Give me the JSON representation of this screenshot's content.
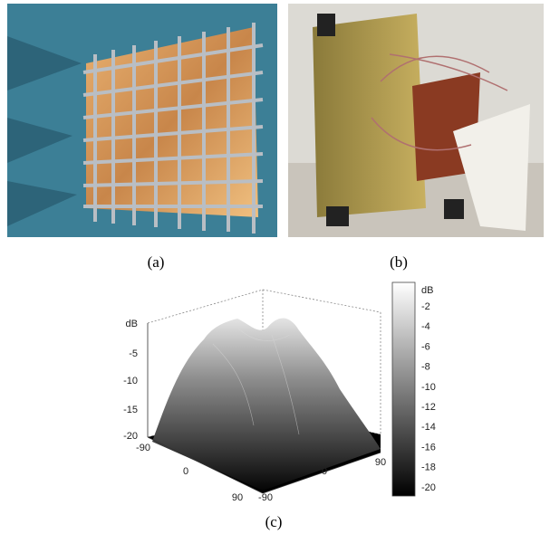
{
  "panels": [
    {
      "label": "(a)"
    },
    {
      "label": "(b)"
    },
    {
      "label": "(c)",
      "plot": {
        "z_axis_label": "dB",
        "z_ticks": [
          -5,
          -10,
          -15,
          -20
        ],
        "x_ticks": [
          -90,
          0,
          90
        ],
        "y_ticks": [
          -90,
          0,
          90
        ],
        "colorbar": {
          "label": "dB",
          "ticks": [
            -2,
            -4,
            -6,
            -8,
            -10,
            -12,
            -14,
            -16,
            -18,
            -20
          ]
        }
      }
    }
  ]
}
